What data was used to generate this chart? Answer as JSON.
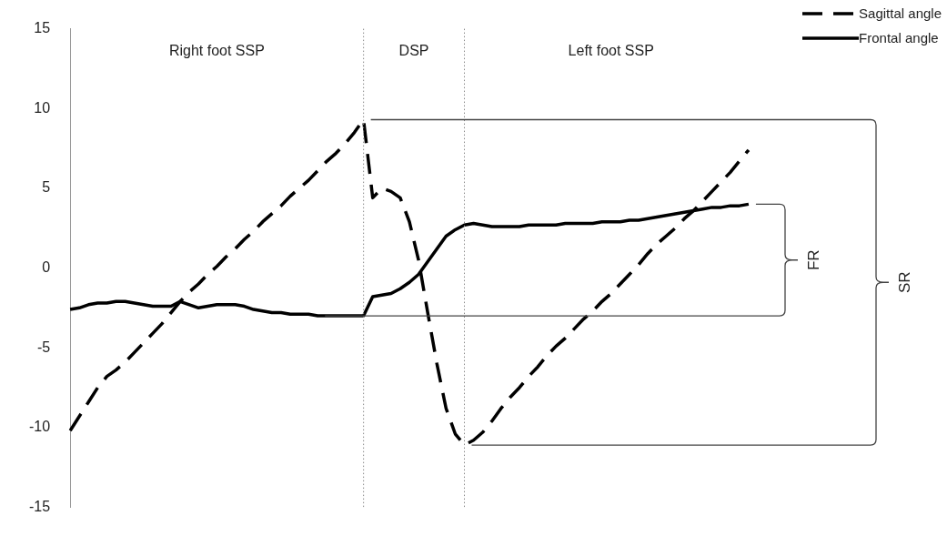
{
  "chart_data": {
    "type": "line",
    "categories": [
      null,
      null,
      null,
      null,
      null,
      null,
      null,
      null,
      null,
      null,
      null,
      null,
      null,
      null,
      null,
      null,
      null,
      null,
      null,
      null,
      null,
      null,
      null,
      null,
      null,
      null,
      null,
      null,
      null,
      null,
      null,
      null,
      null,
      null,
      null,
      null,
      null,
      null,
      null,
      null,
      null,
      null,
      null,
      null,
      null,
      null,
      null,
      null,
      null,
      null,
      null,
      null,
      null,
      null,
      null,
      null,
      null,
      null,
      null,
      null,
      null,
      null,
      null,
      null,
      null,
      null,
      null,
      null,
      null,
      null,
      null,
      null,
      null,
      null,
      null,
      null
    ],
    "ylim": [
      -15,
      15
    ],
    "yticks": [
      -15,
      -10,
      -5,
      0,
      5,
      10,
      15
    ],
    "tick_labels": "y",
    "legend": "top right",
    "series": [
      {
        "name": "Sagittal angle",
        "color": "#000000",
        "line_style": "dashed",
        "values": [
          -10.2,
          -9.3,
          -8.4,
          -7.5,
          -6.8,
          -6.4,
          -5.9,
          -5.3,
          -4.7,
          -4.1,
          -3.5,
          -2.8,
          -2.1,
          -1.5,
          -1.0,
          -0.4,
          0.1,
          0.7,
          1.2,
          1.8,
          2.3,
          2.9,
          3.4,
          3.9,
          4.5,
          5.0,
          5.5,
          6.1,
          6.7,
          7.2,
          7.8,
          8.5,
          9.3,
          4.4,
          5.0,
          4.8,
          4.4,
          2.9,
          0.5,
          -2.8,
          -6.0,
          -8.8,
          -10.4,
          -11.1,
          -10.8,
          -10.3,
          -9.6,
          -8.8,
          -8.1,
          -7.5,
          -6.8,
          -6.2,
          -5.5,
          -4.9,
          -4.4,
          -3.8,
          -3.2,
          -2.7,
          -2.1,
          -1.6,
          -1.0,
          -0.4,
          0.2,
          0.9,
          1.5,
          2.0,
          2.5,
          3.1,
          3.6,
          4.2,
          4.8,
          5.4,
          6.0,
          6.7,
          7.4,
          null
        ]
      },
      {
        "name": "Frontal angle",
        "color": "#000000",
        "line_style": "solid",
        "values": [
          -2.6,
          -2.5,
          -2.3,
          -2.2,
          -2.2,
          -2.1,
          -2.1,
          -2.2,
          -2.3,
          -2.4,
          -2.4,
          -2.4,
          -2.1,
          -2.3,
          -2.5,
          -2.4,
          -2.3,
          -2.3,
          -2.3,
          -2.4,
          -2.6,
          -2.7,
          -2.8,
          -2.8,
          -2.9,
          -2.9,
          -2.9,
          -3.0,
          -3.0,
          -3.0,
          -3.0,
          -3.0,
          -3.0,
          -1.8,
          -1.7,
          -1.6,
          -1.3,
          -0.9,
          -0.4,
          0.4,
          1.2,
          2.0,
          2.4,
          2.7,
          2.8,
          2.7,
          2.6,
          2.6,
          2.6,
          2.6,
          2.7,
          2.7,
          2.7,
          2.7,
          2.8,
          2.8,
          2.8,
          2.8,
          2.9,
          2.9,
          2.9,
          3.0,
          3.0,
          3.1,
          3.2,
          3.3,
          3.4,
          3.5,
          3.6,
          3.7,
          3.8,
          3.8,
          3.9,
          3.9,
          4.0,
          null
        ]
      }
    ],
    "annotations": [
      "Right foot SSP",
      "DSP",
      "Left foot SSP",
      "FR",
      "SR"
    ]
  }
}
